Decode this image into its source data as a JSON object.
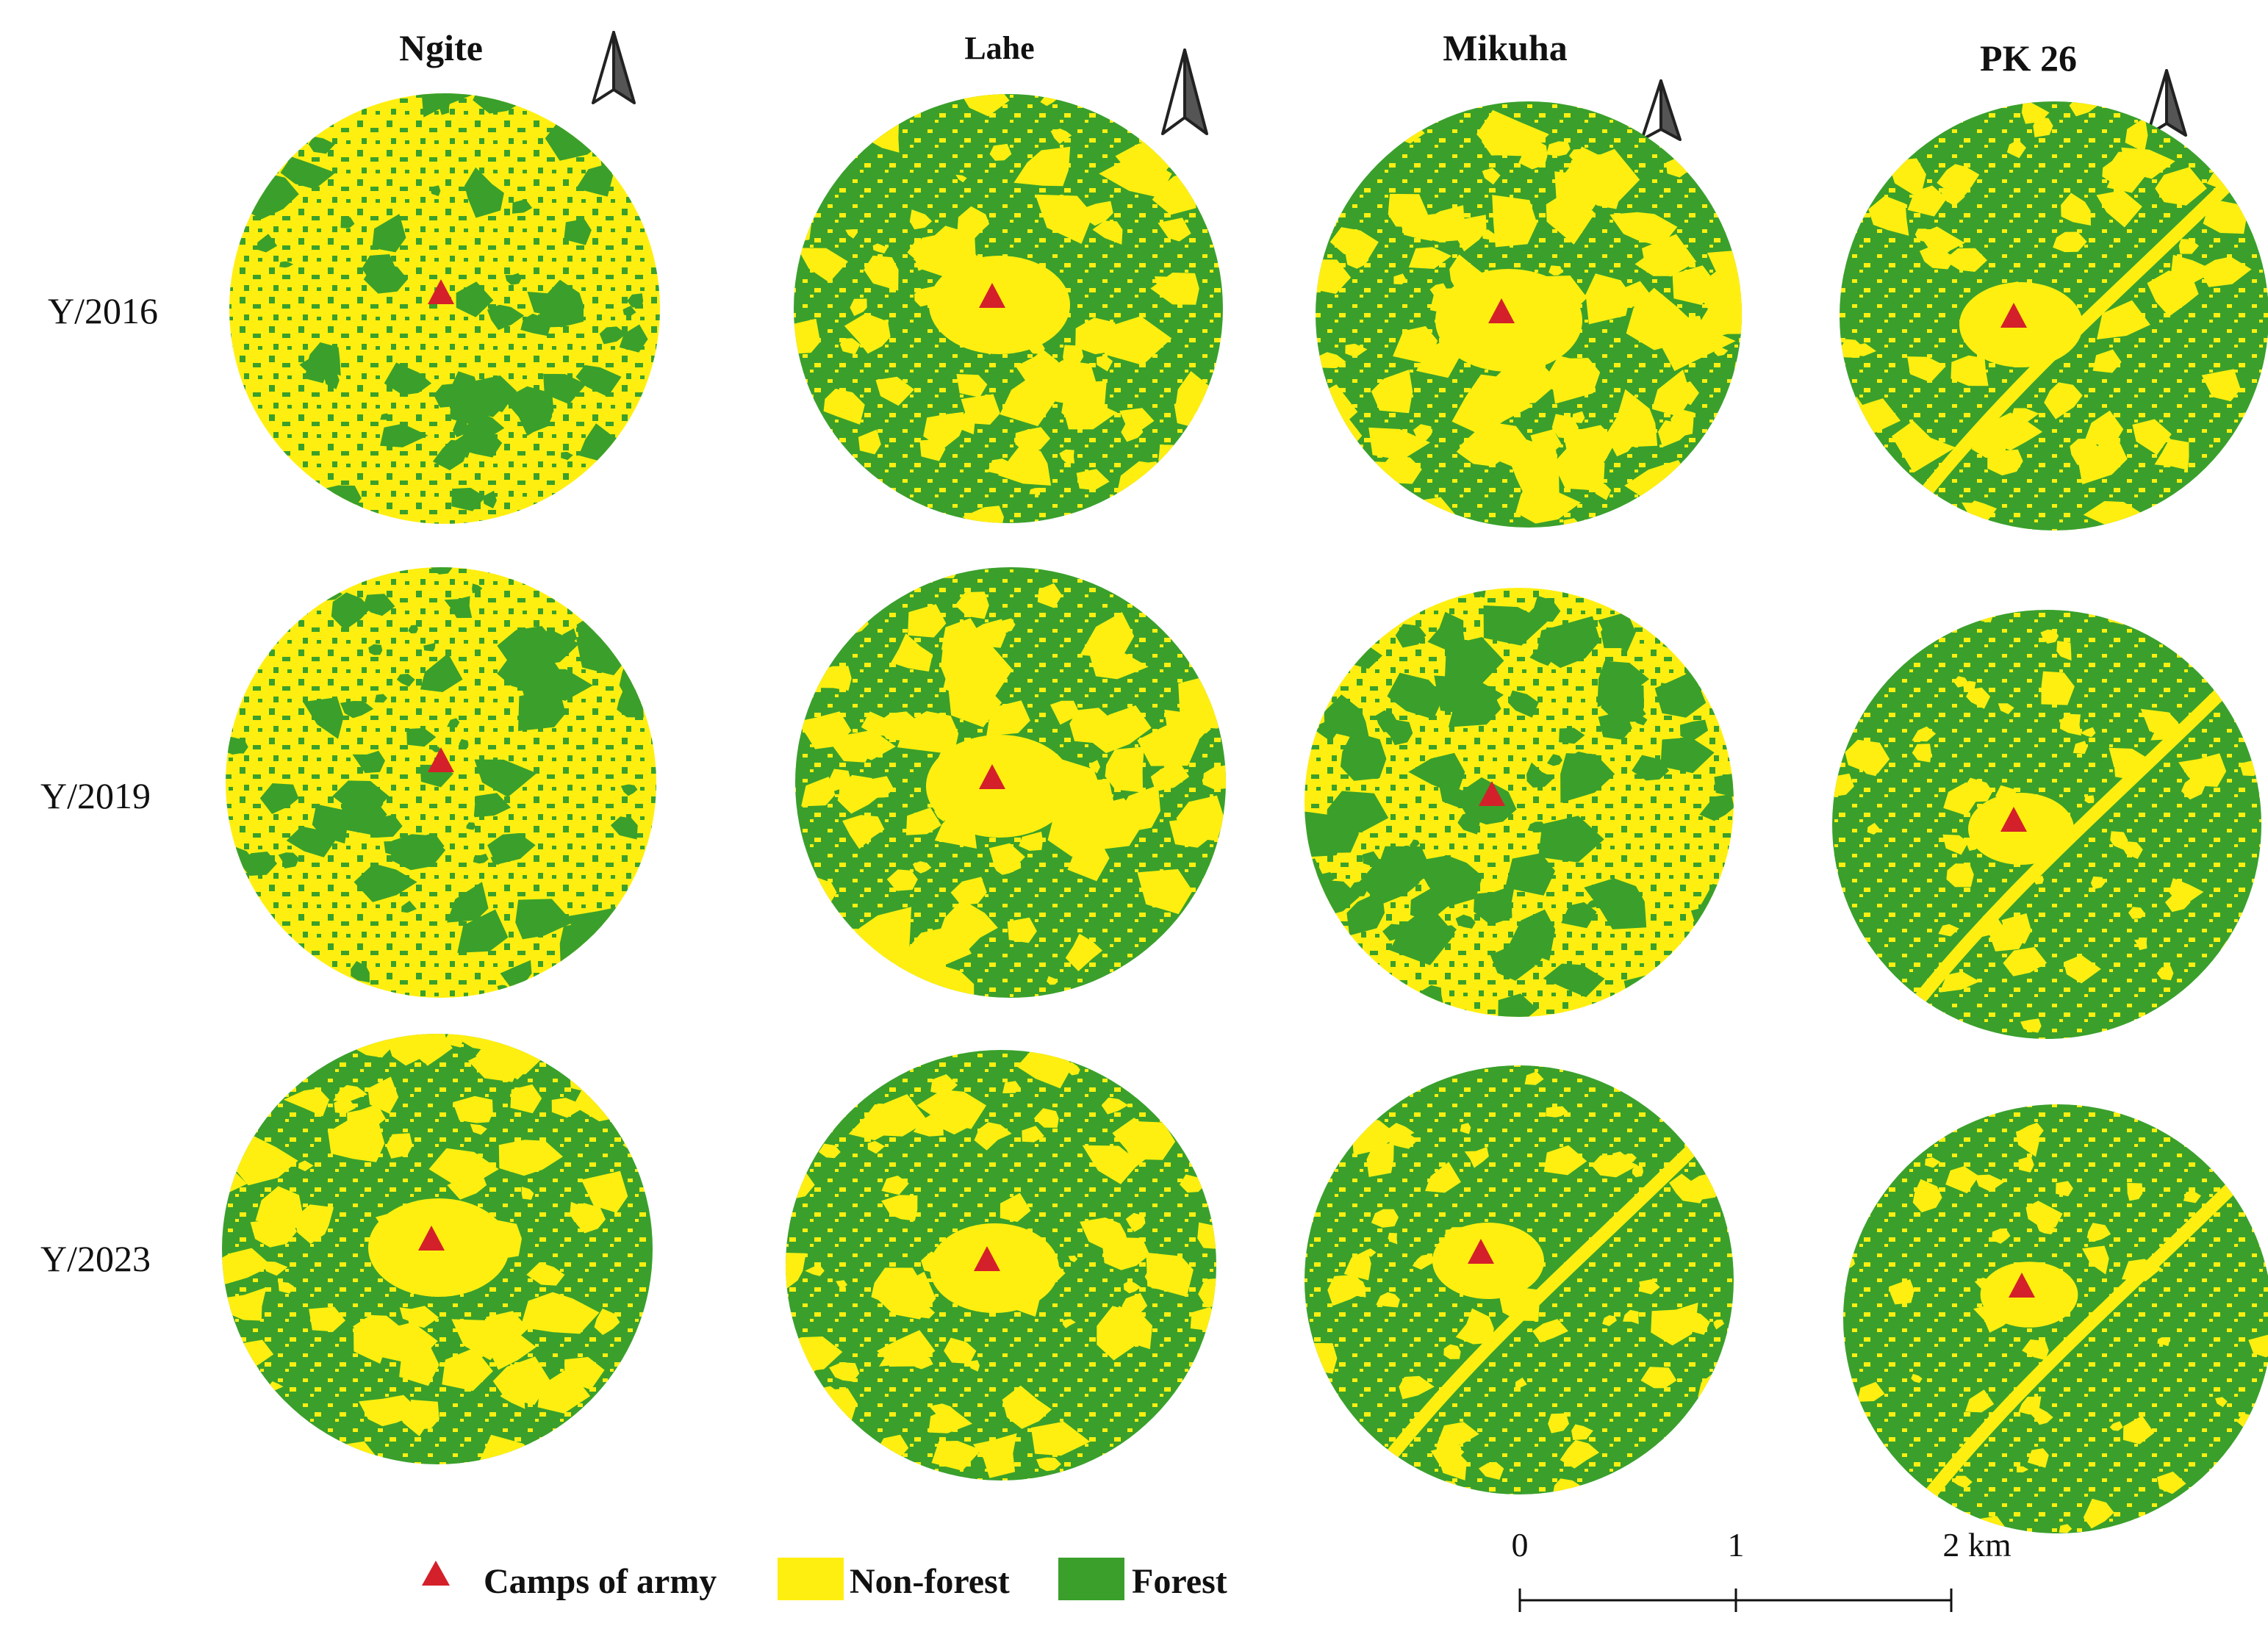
{
  "figure": {
    "sites": [
      "Ngite",
      "Lahe",
      "Mikuha",
      "PK 26"
    ],
    "years": [
      "Y/2016",
      "Y/2019",
      "Y/2023"
    ],
    "legend": {
      "camps_label": "Camps of army",
      "nonforest_label": "Non-forest",
      "forest_label": "Forest"
    },
    "scale_bar": {
      "labels": [
        "0",
        "1",
        "2 km"
      ]
    },
    "colors": {
      "forest": "#3aa02b",
      "nonforest": "#ffef10",
      "camp": "#d4202a",
      "text": "#111111"
    },
    "map_values": {
      "forest_share": [
        [
          0.3,
          0.55,
          0.5,
          0.7
        ],
        [
          0.35,
          0.5,
          0.45,
          0.85
        ],
        [
          0.55,
          0.65,
          0.8,
          0.92
        ]
      ],
      "corridor": [
        [
          false,
          false,
          false,
          true
        ],
        [
          false,
          false,
          false,
          true
        ],
        [
          false,
          false,
          true,
          true
        ]
      ]
    }
  }
}
